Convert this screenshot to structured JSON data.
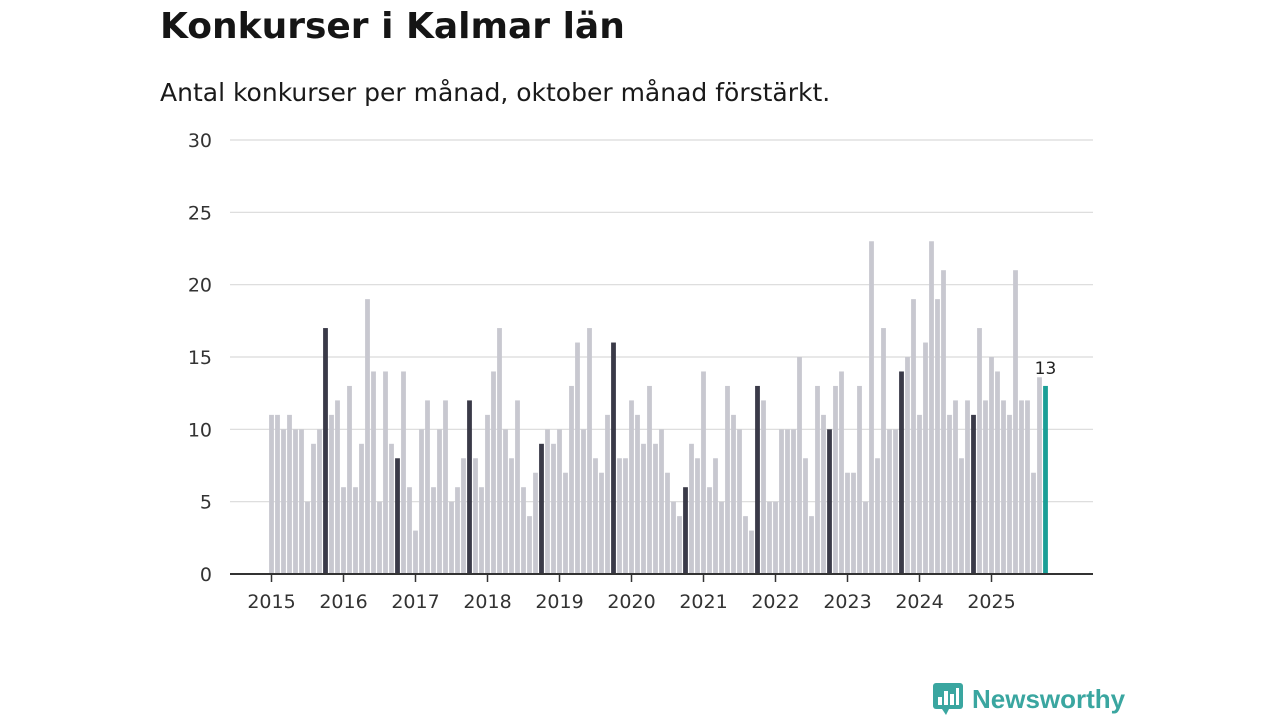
{
  "title": "Konkurser i Kalmar län",
  "subtitle": "Antal konkurser per månad, oktober månad förstärkt.",
  "brand": {
    "name": "Newsworthy",
    "icon": "newsworthy-logo-icon"
  },
  "colors": {
    "bar": "#c8c8d0",
    "highlight": "#3a3a48",
    "latest": "#1a9e96",
    "grid": "#d9d9d9",
    "axis": "#333333"
  },
  "chart_data": {
    "type": "bar",
    "title": "Konkurser i Kalmar län",
    "xlabel": "",
    "ylabel": "",
    "ylim": [
      0,
      30
    ],
    "yticks": [
      "0",
      "5",
      "10",
      "15",
      "20",
      "25",
      "30"
    ],
    "xticks": [
      "2015",
      "2016",
      "2017",
      "2018",
      "2019",
      "2020",
      "2021",
      "2022",
      "2023",
      "2024",
      "2025"
    ],
    "start": "2015-01",
    "highlight_month": 10,
    "last_label": "13",
    "series": [
      {
        "name": "Antal konkurser",
        "values": [
          11,
          11,
          10,
          11,
          10,
          10,
          5,
          9,
          10,
          17,
          11,
          12,
          6,
          13,
          6,
          9,
          19,
          14,
          5,
          14,
          9,
          8,
          14,
          6,
          3,
          10,
          12,
          6,
          10,
          12,
          5,
          6,
          8,
          12,
          8,
          6,
          11,
          14,
          17,
          10,
          8,
          12,
          6,
          4,
          7,
          9,
          10,
          9,
          10,
          7,
          13,
          16,
          10,
          17,
          8,
          7,
          11,
          16,
          8,
          8,
          12,
          11,
          9,
          13,
          9,
          10,
          7,
          5,
          4,
          6,
          9,
          8,
          14,
          6,
          8,
          5,
          13,
          11,
          10,
          4,
          3,
          13,
          12,
          5,
          5,
          10,
          10,
          10,
          15,
          8,
          4,
          13,
          11,
          10,
          13,
          14,
          7,
          7,
          13,
          5,
          23,
          8,
          17,
          10,
          10,
          14,
          15,
          19,
          11,
          16,
          23,
          19,
          21,
          11,
          12,
          8,
          12,
          11,
          17,
          12,
          15,
          14,
          12,
          11,
          21,
          12,
          12,
          7,
          13.6,
          13
        ]
      }
    ]
  }
}
